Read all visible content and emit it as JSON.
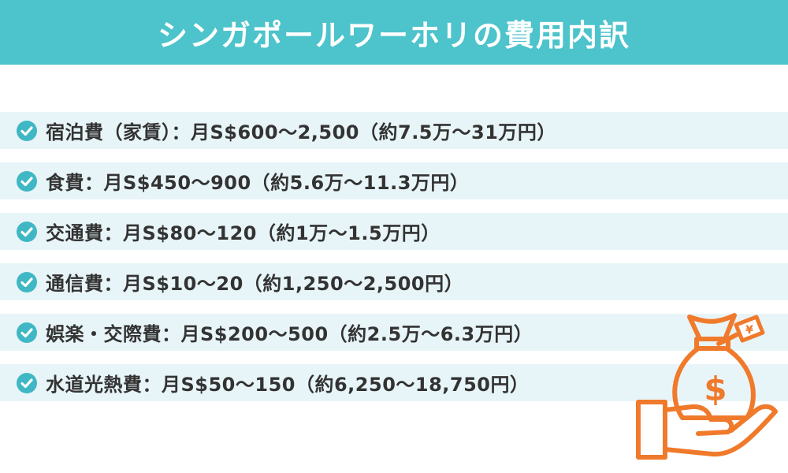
{
  "banner": {
    "title": "シンガポールワーホリの費用内訳"
  },
  "items": [
    {
      "text": "宿泊費（家賃）：月S$600〜2,500（約7.5万〜31万円）"
    },
    {
      "text": "食費：月S$450〜900（約5.6万〜11.3万円）"
    },
    {
      "text": "交通費：月S$80〜120（約1万〜1.5万円）"
    },
    {
      "text": "通信費：月S$10〜20（約1,250〜2,500円）"
    },
    {
      "text": "娯楽・交際費：月S$200〜500（約2.5万〜6.3万円）"
    },
    {
      "text": "水道光熱費：月S$50〜150（約6,250〜18,750円）"
    }
  ],
  "illustration": {
    "icon": "money-bag-on-hand-icon",
    "bag_symbol": "$",
    "tag_symbol": "¥"
  },
  "colors": {
    "banner": "#4dc3cb",
    "row_background": "#e8f5f8",
    "check": "#3fb7c4",
    "text": "#333333",
    "illustration": "#f07a2c"
  }
}
